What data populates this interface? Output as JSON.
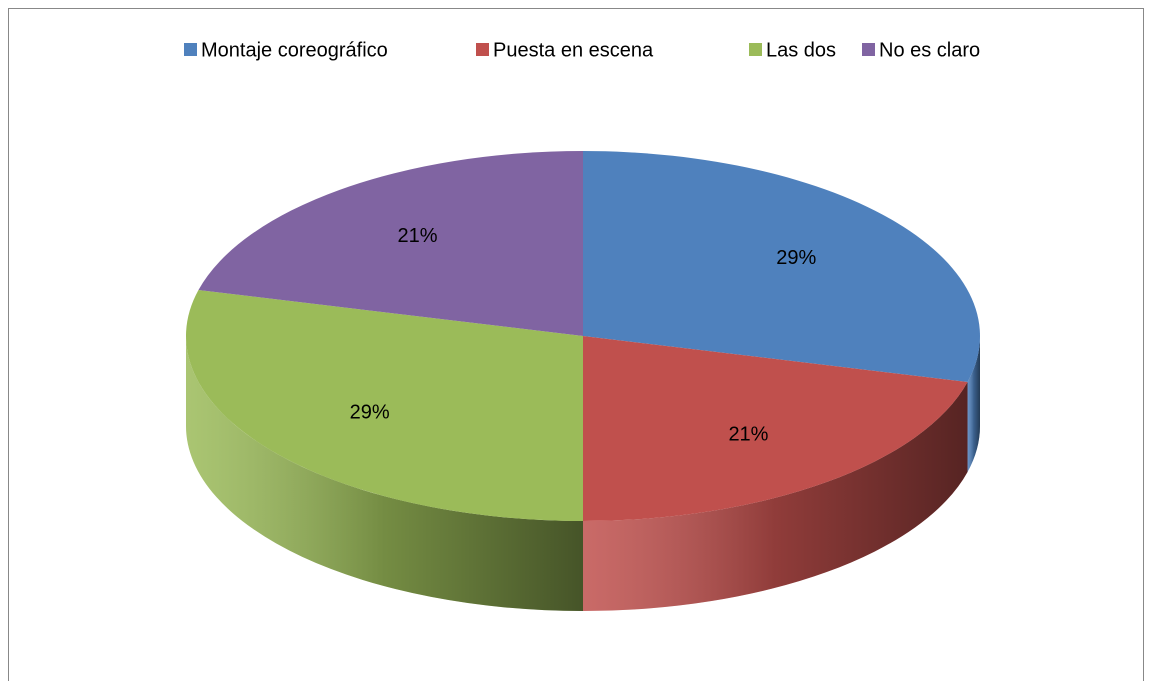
{
  "chart_data": {
    "type": "pie",
    "categories": [
      "Montaje coreográfico",
      "Puesta en escena",
      "Las dos",
      "No es claro"
    ],
    "values": [
      29,
      21,
      29,
      21
    ],
    "value_labels": [
      "29%",
      "21%",
      "29%",
      "21%"
    ],
    "colors": [
      "#4f81bd",
      "#c0504d",
      "#9bbb59",
      "#8064a2"
    ],
    "legend": "top"
  }
}
